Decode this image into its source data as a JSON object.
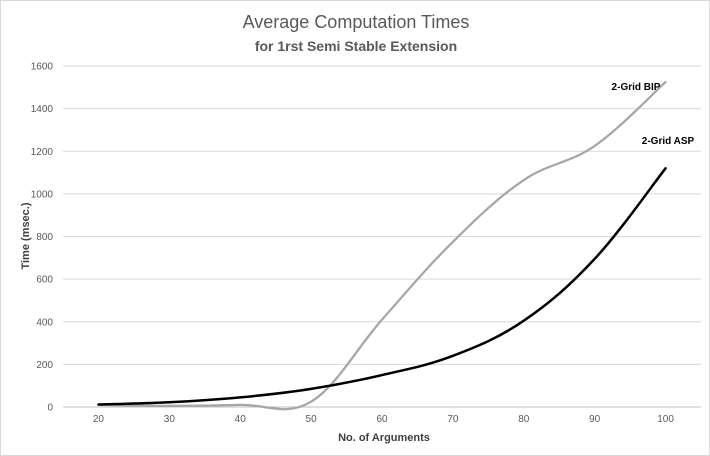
{
  "chart_data": {
    "type": "line",
    "title": "Average Computation Times",
    "subtitle": "for 1rst Semi Stable Extension",
    "xlabel": "No. of Arguments",
    "ylabel": "Time (msec.)",
    "x": [
      20,
      30,
      40,
      50,
      60,
      70,
      80,
      90,
      100
    ],
    "xlim": [
      15,
      105
    ],
    "ylim": [
      0,
      1600
    ],
    "yticks": [
      0,
      200,
      400,
      600,
      800,
      1000,
      1200,
      1400,
      1600
    ],
    "grid": true,
    "legend": "none",
    "series": [
      {
        "name": "2-Grid BIP",
        "color": "#a6a6a6",
        "values": [
          10,
          5,
          10,
          25,
          410,
          775,
          1065,
          1225,
          1525
        ]
      },
      {
        "name": "2-Grid ASP",
        "color": "#000000",
        "values": [
          12,
          22,
          45,
          85,
          150,
          240,
          405,
          695,
          1120
        ]
      }
    ]
  }
}
